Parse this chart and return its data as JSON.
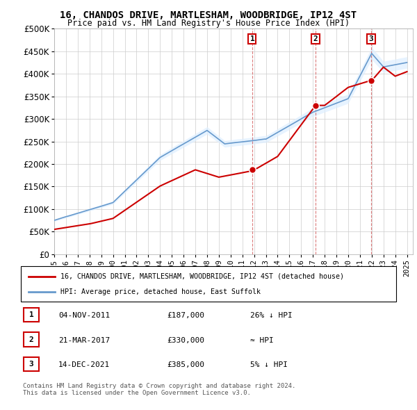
{
  "title": "16, CHANDOS DRIVE, MARTLESHAM, WOODBRIDGE, IP12 4ST",
  "subtitle": "Price paid vs. HM Land Registry's House Price Index (HPI)",
  "ylabel": "",
  "ylim": [
    0,
    500000
  ],
  "yticks": [
    0,
    50000,
    100000,
    150000,
    200000,
    250000,
    300000,
    350000,
    400000,
    450000,
    500000
  ],
  "xlim_start": 1995.0,
  "xlim_end": 2025.5,
  "sale_dates": [
    2011.84,
    2017.22,
    2021.95
  ],
  "sale_prices": [
    187000,
    330000,
    385000
  ],
  "sale_labels": [
    "1",
    "2",
    "3"
  ],
  "sale_info": [
    [
      "1",
      "04-NOV-2011",
      "£187,000",
      "26% ↓ HPI"
    ],
    [
      "2",
      "21-MAR-2017",
      "£330,000",
      "≈ HPI"
    ],
    [
      "3",
      "14-DEC-2021",
      "£385,000",
      "5% ↓ HPI"
    ]
  ],
  "legend_line1": "16, CHANDOS DRIVE, MARTLESHAM, WOODBRIDGE, IP12 4ST (detached house)",
  "legend_line2": "HPI: Average price, detached house, East Suffolk",
  "footer": [
    "Contains HM Land Registry data © Crown copyright and database right 2024.",
    "This data is licensed under the Open Government Licence v3.0."
  ],
  "red_color": "#cc0000",
  "blue_color": "#6699cc",
  "shade_color": "#ddeeff",
  "background_color": "#ffffff",
  "grid_color": "#cccccc"
}
